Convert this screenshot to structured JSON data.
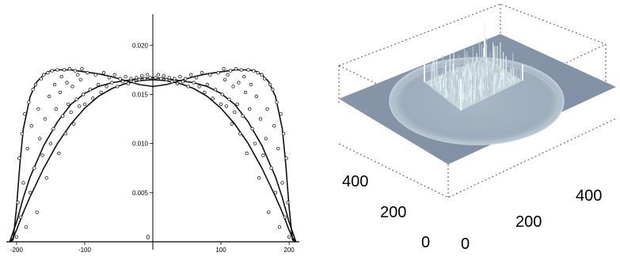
{
  "chart_data": [
    {
      "type": "scatter",
      "title": "",
      "xlabel": "",
      "ylabel": "",
      "xlim": [
        -215,
        215
      ],
      "ylim": [
        0,
        0.023
      ],
      "x_ticks": [
        -200,
        -100,
        0,
        100,
        200
      ],
      "x_tick_labels": [
        "-200",
        "-100",
        "0",
        "100",
        "200"
      ],
      "y_ticks": [
        0.005,
        0.01,
        0.015,
        0.02
      ],
      "y_tick_labels": [
        "0.005",
        "0.010",
        "0.015",
        "0.020"
      ],
      "grid": false,
      "series": [
        {
          "kind": "line",
          "points": [
            [
              -210,
              0
            ],
            [
              -205,
              0.0002
            ],
            [
              -200,
              0.0035
            ],
            [
              -195,
              0.008
            ],
            [
              -190,
              0.0115
            ],
            [
              -180,
              0.0148
            ],
            [
              -170,
              0.0163
            ],
            [
              -160,
              0.017
            ],
            [
              -150,
              0.0174
            ],
            [
              -140,
              0.0175
            ],
            [
              -120,
              0.0175
            ],
            [
              -100,
              0.0173
            ],
            [
              -80,
              0.0171
            ],
            [
              -60,
              0.0168
            ],
            [
              -40,
              0.0164
            ],
            [
              -20,
              0.016
            ],
            [
              0,
              0.0158
            ],
            [
              20,
              0.016
            ],
            [
              40,
              0.0164
            ],
            [
              60,
              0.0168
            ],
            [
              80,
              0.0171
            ],
            [
              100,
              0.0173
            ],
            [
              120,
              0.0175
            ],
            [
              140,
              0.0175
            ],
            [
              150,
              0.0174
            ],
            [
              160,
              0.017
            ],
            [
              170,
              0.0163
            ],
            [
              180,
              0.0148
            ],
            [
              190,
              0.0115
            ],
            [
              195,
              0.008
            ],
            [
              200,
              0.0035
            ],
            [
              205,
              0.0002
            ],
            [
              210,
              0
            ]
          ]
        },
        {
          "kind": "line",
          "points": [
            [
              -210,
              0
            ],
            [
              -205,
              0.0004
            ],
            [
              -200,
              0.0012
            ],
            [
              -190,
              0.003
            ],
            [
              -180,
              0.0046
            ],
            [
              -160,
              0.0075
            ],
            [
              -140,
              0.01
            ],
            [
              -120,
              0.012
            ],
            [
              -100,
              0.0136
            ],
            [
              -80,
              0.0148
            ],
            [
              -60,
              0.0156
            ],
            [
              -40,
              0.0161
            ],
            [
              -20,
              0.0164
            ],
            [
              0,
              0.0165
            ],
            [
              20,
              0.0164
            ],
            [
              40,
              0.0161
            ],
            [
              60,
              0.0156
            ],
            [
              80,
              0.0148
            ],
            [
              100,
              0.0136
            ],
            [
              120,
              0.012
            ],
            [
              140,
              0.01
            ],
            [
              160,
              0.0075
            ],
            [
              180,
              0.0046
            ],
            [
              190,
              0.003
            ],
            [
              200,
              0.0012
            ],
            [
              205,
              0.0004
            ],
            [
              210,
              0
            ]
          ]
        },
        {
          "kind": "line",
          "points": [
            [
              -210,
              0
            ],
            [
              -200,
              0.002
            ],
            [
              -190,
              0.0045
            ],
            [
              -180,
              0.0066
            ],
            [
              -160,
              0.0098
            ],
            [
              -140,
              0.0122
            ],
            [
              -120,
              0.014
            ],
            [
              -100,
              0.0151
            ],
            [
              -80,
              0.0158
            ],
            [
              -60,
              0.0162
            ],
            [
              -40,
              0.0164
            ],
            [
              -20,
              0.0166
            ],
            [
              0,
              0.0167
            ],
            [
              20,
              0.0166
            ],
            [
              40,
              0.0164
            ],
            [
              60,
              0.0162
            ],
            [
              80,
              0.0158
            ],
            [
              100,
              0.0151
            ],
            [
              120,
              0.014
            ],
            [
              140,
              0.0122
            ],
            [
              160,
              0.0098
            ],
            [
              180,
              0.0066
            ],
            [
              190,
              0.0045
            ],
            [
              200,
              0.002
            ],
            [
              210,
              0
            ]
          ]
        },
        {
          "kind": "markers",
          "marker": "open-circle",
          "points": [
            [
              -200,
              0.0005
            ],
            [
              -198,
              0.004
            ],
            [
              -196,
              0.0085
            ],
            [
              -194,
              0.0025
            ],
            [
              -192,
              0.011
            ],
            [
              -190,
              0.006
            ],
            [
              -188,
              0.013
            ],
            [
              -186,
              0.0015
            ],
            [
              -184,
              0.0095
            ],
            [
              -182,
              0.0142
            ],
            [
              -180,
              0.005
            ],
            [
              -178,
              0.0118
            ],
            [
              -176,
              0.0155
            ],
            [
              -174,
              0.0075
            ],
            [
              -172,
              0.016
            ],
            [
              -170,
              0.003
            ],
            [
              -168,
              0.0135
            ],
            [
              -166,
              0.0105
            ],
            [
              -164,
              0.0166
            ],
            [
              -162,
              0.0088
            ],
            [
              -160,
              0.017
            ],
            [
              -158,
              0.0125
            ],
            [
              -156,
              0.0065
            ],
            [
              -154,
              0.0172
            ],
            [
              -152,
              0.0148
            ],
            [
              -150,
              0.01
            ],
            [
              -148,
              0.0174
            ],
            [
              -146,
              0.0115
            ],
            [
              -144,
              0.016
            ],
            [
              -142,
              0.0135
            ],
            [
              -140,
              0.0175
            ],
            [
              -138,
              0.009
            ],
            [
              -136,
              0.0152
            ],
            [
              -134,
              0.0168
            ],
            [
              -132,
              0.0128
            ],
            [
              -130,
              0.0175
            ],
            [
              -128,
              0.011
            ],
            [
              -126,
              0.0162
            ],
            [
              -124,
              0.014
            ],
            [
              -122,
              0.0176
            ],
            [
              -120,
              0.0132
            ],
            [
              -118,
              0.0158
            ],
            [
              -116,
              0.012
            ],
            [
              -114,
              0.0174
            ],
            [
              -112,
              0.0145
            ],
            [
              -110,
              0.017
            ],
            [
              -108,
              0.0138
            ],
            [
              -106,
              0.0165
            ],
            [
              -104,
              0.0176
            ],
            [
              -102,
              0.015
            ],
            [
              -100,
              0.014
            ],
            [
              -96,
              0.0172
            ],
            [
              -92,
              0.0155
            ],
            [
              -88,
              0.0146
            ],
            [
              -84,
              0.017
            ],
            [
              -80,
              0.016
            ],
            [
              -76,
              0.0152
            ],
            [
              -72,
              0.0172
            ],
            [
              -68,
              0.0158
            ],
            [
              -64,
              0.0167
            ],
            [
              -60,
              0.0162
            ],
            [
              -56,
              0.017
            ],
            [
              -52,
              0.0158
            ],
            [
              -48,
              0.0166
            ],
            [
              -44,
              0.0163
            ],
            [
              -40,
              0.0168
            ],
            [
              -36,
              0.0161
            ],
            [
              -32,
              0.0166
            ],
            [
              -28,
              0.0163
            ],
            [
              -24,
              0.0167
            ],
            [
              -20,
              0.0165
            ],
            [
              -16,
              0.0169
            ],
            [
              -12,
              0.0166
            ],
            [
              -8,
              0.017
            ],
            [
              -4,
              0.0167
            ],
            [
              4,
              0.0167
            ],
            [
              8,
              0.017
            ],
            [
              12,
              0.0166
            ],
            [
              16,
              0.0169
            ],
            [
              20,
              0.0165
            ],
            [
              24,
              0.0167
            ],
            [
              28,
              0.0163
            ],
            [
              32,
              0.0166
            ],
            [
              36,
              0.0161
            ],
            [
              40,
              0.0168
            ],
            [
              44,
              0.0163
            ],
            [
              48,
              0.0166
            ],
            [
              52,
              0.0158
            ],
            [
              56,
              0.017
            ],
            [
              60,
              0.0162
            ],
            [
              64,
              0.0167
            ],
            [
              68,
              0.0158
            ],
            [
              72,
              0.0172
            ],
            [
              76,
              0.0152
            ],
            [
              80,
              0.016
            ],
            [
              84,
              0.017
            ],
            [
              88,
              0.0146
            ],
            [
              92,
              0.0155
            ],
            [
              96,
              0.0172
            ],
            [
              100,
              0.014
            ],
            [
              102,
              0.015
            ],
            [
              104,
              0.0176
            ],
            [
              106,
              0.0165
            ],
            [
              108,
              0.0138
            ],
            [
              110,
              0.017
            ],
            [
              112,
              0.0145
            ],
            [
              114,
              0.0174
            ],
            [
              116,
              0.012
            ],
            [
              118,
              0.0158
            ],
            [
              120,
              0.0132
            ],
            [
              122,
              0.0176
            ],
            [
              124,
              0.014
            ],
            [
              126,
              0.0162
            ],
            [
              128,
              0.011
            ],
            [
              130,
              0.0175
            ],
            [
              132,
              0.0128
            ],
            [
              134,
              0.0168
            ],
            [
              136,
              0.0152
            ],
            [
              138,
              0.009
            ],
            [
              140,
              0.0175
            ],
            [
              142,
              0.0135
            ],
            [
              144,
              0.016
            ],
            [
              146,
              0.0115
            ],
            [
              148,
              0.0174
            ],
            [
              150,
              0.01
            ],
            [
              152,
              0.0148
            ],
            [
              154,
              0.0172
            ],
            [
              156,
              0.0065
            ],
            [
              158,
              0.0125
            ],
            [
              160,
              0.017
            ],
            [
              162,
              0.0088
            ],
            [
              164,
              0.0166
            ],
            [
              166,
              0.0105
            ],
            [
              168,
              0.0135
            ],
            [
              170,
              0.003
            ],
            [
              172,
              0.016
            ],
            [
              174,
              0.0075
            ],
            [
              176,
              0.0155
            ],
            [
              178,
              0.0118
            ],
            [
              180,
              0.005
            ],
            [
              182,
              0.0142
            ],
            [
              184,
              0.0095
            ],
            [
              186,
              0.0015
            ],
            [
              188,
              0.013
            ],
            [
              190,
              0.006
            ],
            [
              192,
              0.011
            ],
            [
              194,
              0.0025
            ],
            [
              196,
              0.0085
            ],
            [
              198,
              0.004
            ],
            [
              200,
              0.0005
            ]
          ]
        }
      ]
    },
    {
      "type": "surface",
      "title": "",
      "xlabel": "",
      "ylabel": "",
      "x_tick_labels": [
        "0",
        "200",
        "400"
      ],
      "y_tick_labels": [
        "0",
        "200",
        "400"
      ],
      "colors": {
        "base_plane": "#8694a7",
        "disc": "#a3b2c2",
        "ridge": "#dbe8ec",
        "box": "#555555"
      }
    }
  ]
}
